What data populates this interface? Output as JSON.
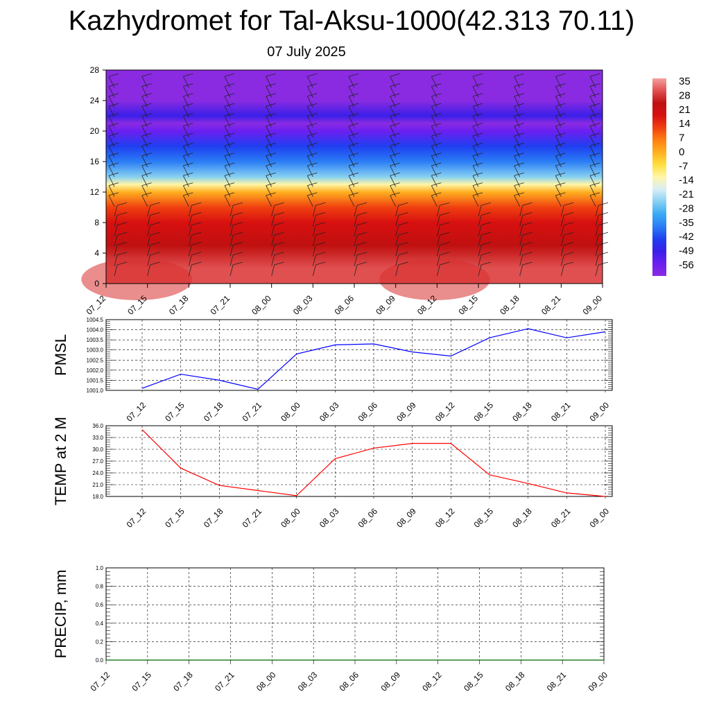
{
  "page": {
    "title": "Kazhydromet for Tal-Aksu-1000(42.313 70.11)",
    "subtitle": "07 July 2025"
  },
  "chart_data": [
    {
      "type": "heatmap",
      "name": "temperature-wind-cross-section",
      "x_categories": [
        "07_12",
        "07_15",
        "07_18",
        "07_21",
        "08_00",
        "08_03",
        "08_06",
        "08_09",
        "08_12",
        "08_15",
        "08_18",
        "08_21",
        "09_00"
      ],
      "y_ticks": [
        0,
        4,
        8,
        12,
        16,
        20,
        24,
        28
      ],
      "ylim": [
        0,
        28
      ],
      "colorbar": {
        "labels": [
          35,
          28,
          21,
          14,
          7,
          0,
          -7,
          -14,
          -21,
          -28,
          -35,
          -42,
          -49,
          -56
        ],
        "range": [
          -60,
          38
        ],
        "colors": [
          "#8a2be2",
          "#6b1ff0",
          "#3a1fe8",
          "#1f3ff0",
          "#2a7df5",
          "#3aa9f5",
          "#86d0f2",
          "#d8eef8",
          "#fff6a8",
          "#ffe040",
          "#ffb020",
          "#ff8010",
          "#f04010",
          "#d81010",
          "#c01010",
          "#e05050",
          "#f5a0a0"
        ]
      },
      "temperature_profile": [
        {
          "h": 0,
          "t": 31
        },
        {
          "h": 2,
          "t": 28
        },
        {
          "h": 5,
          "t": 24
        },
        {
          "h": 8,
          "t": 19
        },
        {
          "h": 10,
          "t": 12
        },
        {
          "h": 12,
          "t": 1
        },
        {
          "h": 13,
          "t": -13
        },
        {
          "h": 14,
          "t": -22
        },
        {
          "h": 16,
          "t": -34
        },
        {
          "h": 18,
          "t": -42
        },
        {
          "h": 20,
          "t": -53
        },
        {
          "h": 21,
          "t": -56
        },
        {
          "h": 22,
          "t": -48
        },
        {
          "h": 24,
          "t": -57
        },
        {
          "h": 28,
          "t": -60
        }
      ]
    },
    {
      "type": "line",
      "name": "PMSL",
      "ylabel": "PMSL",
      "x": [
        "07_12",
        "07_15",
        "07_18",
        "07_21",
        "08_00",
        "08_03",
        "08_06",
        "08_09",
        "08_12",
        "08_15",
        "08_18",
        "08_21",
        "09_00"
      ],
      "values": [
        1001.1,
        1001.8,
        1001.5,
        1001.05,
        1002.8,
        1003.25,
        1003.3,
        1002.9,
        1002.7,
        1003.6,
        1004.05,
        1003.6,
        1003.9
      ],
      "ylim": [
        1001.0,
        1004.5
      ],
      "yticks": [
        "1001.0",
        "1001.5",
        "1002.0",
        "1002.5",
        "1003.0",
        "1003.5",
        "1004.0",
        "1004.5"
      ],
      "color": "#0000ff"
    },
    {
      "type": "line",
      "name": "TEMP at 2 M",
      "ylabel": "TEMP at 2 M",
      "x": [
        "07_12",
        "07_15",
        "07_18",
        "07_21",
        "08_00",
        "08_03",
        "08_06",
        "08_09",
        "08_12",
        "08_15",
        "08_18",
        "08_21",
        "09_00"
      ],
      "values": [
        35.0,
        25.2,
        20.8,
        19.5,
        18.2,
        27.6,
        30.3,
        31.5,
        31.5,
        23.5,
        21.3,
        18.9,
        18.0
      ],
      "ylim": [
        18.0,
        36.0
      ],
      "yticks": [
        "18.0",
        "21.0",
        "24.0",
        "27.0",
        "30.0",
        "33.0",
        "36.0"
      ],
      "color": "#ff0000"
    },
    {
      "type": "line",
      "name": "PRECIP, mm",
      "ylabel": "PRECIP, mm",
      "x": [
        "07_12",
        "07_15",
        "07_18",
        "07_21",
        "08_00",
        "08_03",
        "08_06",
        "08_09",
        "08_12",
        "08_15",
        "08_18",
        "08_21",
        "09_00"
      ],
      "values": [
        0,
        0,
        0,
        0,
        0,
        0,
        0,
        0,
        0,
        0,
        0,
        0,
        0
      ],
      "ylim": [
        0.0,
        1.0
      ],
      "yticks": [
        "0.0",
        "0.2",
        "0.4",
        "0.6",
        "0.8",
        "1.0"
      ],
      "color": "#006400"
    }
  ]
}
